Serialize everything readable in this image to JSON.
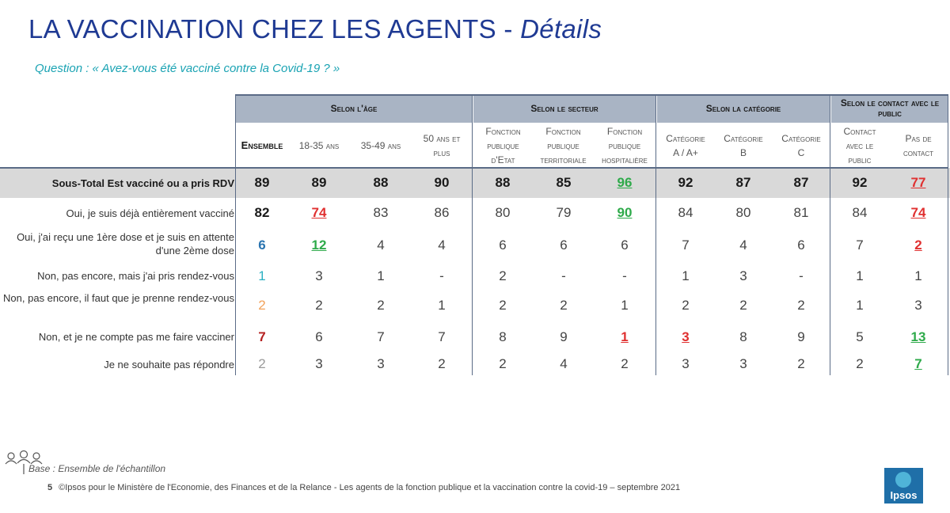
{
  "title_main": "LA VACCINATION CHEZ LES AGENTS - ",
  "title_detail": "Détails",
  "question": "Question : « Avez-vous été vacciné contre la Covid-19 ? »",
  "groups": [
    "Selon l'âge",
    "Selon le secteur",
    "Selon la catégorie",
    "Selon le contact avec le public"
  ],
  "columns": [
    "Ensemble",
    "18-35 ans",
    "35-49 ans",
    "50 ans et plus",
    "Fonction publique d'Etat",
    "Fonction publique territoriale",
    "Fonction publique hospitalière",
    "Catégorie A / A+",
    "Catégorie B",
    "Catégorie C",
    "Contact avec le public",
    "Pas de contact"
  ],
  "rows": [
    {
      "label": "Sous-Total Est vacciné ou a pris RDV",
      "values": [
        "89",
        "89",
        "88",
        "90",
        "88",
        "85",
        "96",
        "92",
        "87",
        "87",
        "92",
        "77"
      ]
    },
    {
      "label": "Oui, je suis déjà entièrement vacciné",
      "values": [
        "82",
        "74",
        "83",
        "86",
        "80",
        "79",
        "90",
        "84",
        "80",
        "81",
        "84",
        "74"
      ]
    },
    {
      "label": "Oui, j'ai reçu une 1ère dose et je suis en attente d'une 2ème dose",
      "values": [
        "6",
        "12",
        "4",
        "4",
        "6",
        "6",
        "6",
        "7",
        "4",
        "6",
        "7",
        "2"
      ]
    },
    {
      "label": "Non, pas encore, mais j'ai pris rendez-vous",
      "values": [
        "1",
        "3",
        "1",
        "-",
        "2",
        "-",
        "-",
        "1",
        "3",
        "-",
        "1",
        "1"
      ]
    },
    {
      "label": "Non, pas encore, il faut que je prenne rendez-vous",
      "values": [
        "2",
        "2",
        "2",
        "1",
        "2",
        "2",
        "1",
        "2",
        "2",
        "2",
        "1",
        "3"
      ]
    },
    {
      "label": "Non, et je ne compte pas me faire vacciner",
      "values": [
        "7",
        "6",
        "7",
        "7",
        "8",
        "9",
        "1",
        "3",
        "8",
        "9",
        "5",
        "13"
      ]
    },
    {
      "label": "Je ne souhaite pas répondre",
      "values": [
        "2",
        "3",
        "3",
        "2",
        "2",
        "4",
        "2",
        "3",
        "3",
        "2",
        "2",
        "7"
      ]
    }
  ],
  "base": "Base : Ensemble de l'échantillon",
  "page_number": "5",
  "footer": "©Ipsos pour le Ministère de l'Economie, des Finances et de la Relance - Les agents de la fonction publique et la vaccination contre la covid-19 – septembre 2021",
  "logo_text": "Ipsos",
  "colors": {
    "significant_low": "#e03030",
    "significant_high": "#2eaa4a",
    "header_band": "#a9b4c4",
    "title": "#1f3a93"
  }
}
